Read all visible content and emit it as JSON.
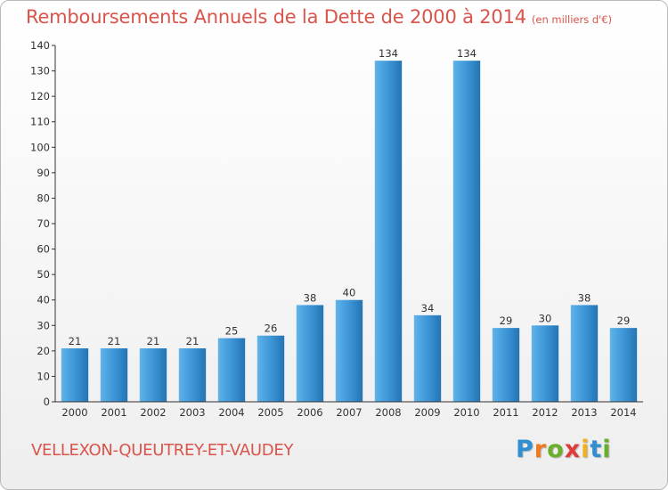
{
  "title": "Remboursements Annuels de la Dette de 2000 à 2014",
  "subtitle": "(en milliers d'€)",
  "commune": "VELLEXON-QUEUTREY-ET-VAUDEY",
  "logo": {
    "letters": [
      "P",
      "r",
      "o",
      "x",
      "i",
      "t",
      "i"
    ],
    "colors": [
      "#2f8fd2",
      "#ef7b1f",
      "#6aaf2b",
      "#e03b3b",
      "#f2b01e",
      "#2f8fd2",
      "#6aaf2b"
    ]
  },
  "colors": {
    "bar": "#3a93d4",
    "bar_light": "#5fb3ea",
    "bar_dark": "#2474b3",
    "axis": "#333333",
    "text": "#d9544b"
  },
  "chart_data": {
    "type": "bar",
    "categories": [
      "2000",
      "2001",
      "2002",
      "2003",
      "2004",
      "2005",
      "2006",
      "2007",
      "2008",
      "2009",
      "2010",
      "2011",
      "2012",
      "2013",
      "2014"
    ],
    "values": [
      21,
      21,
      21,
      21,
      25,
      26,
      38,
      40,
      134,
      34,
      134,
      29,
      30,
      38,
      29
    ],
    "ylim": [
      0,
      140
    ],
    "yticks": [
      0,
      10,
      20,
      30,
      40,
      50,
      60,
      70,
      80,
      90,
      100,
      110,
      120,
      130,
      140
    ],
    "grid": false,
    "data_labels": true
  }
}
